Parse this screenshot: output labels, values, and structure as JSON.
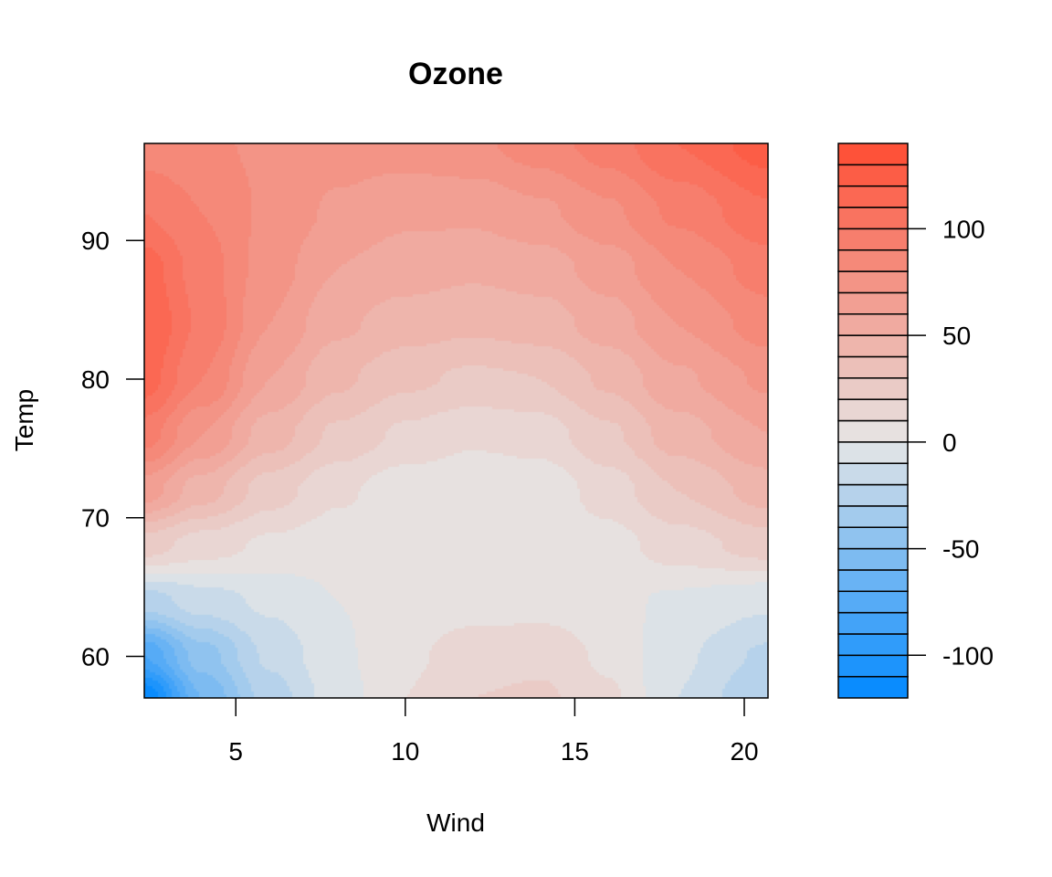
{
  "chart_data": {
    "type": "heatmap",
    "title": "Ozone",
    "xlabel": "Wind",
    "ylabel": "Temp",
    "xlim": [
      2.3,
      20.7
    ],
    "ylim": [
      57,
      97
    ],
    "x_ticks": [
      5,
      10,
      15,
      20
    ],
    "x_tick_labels": [
      "5",
      "10",
      "15",
      "20"
    ],
    "y_ticks": [
      60,
      70,
      80,
      90
    ],
    "y_tick_labels": [
      "60",
      "70",
      "80",
      "90"
    ],
    "colorbar": {
      "levels": [
        -120,
        -110,
        -100,
        -90,
        -80,
        -70,
        -60,
        -50,
        -40,
        -30,
        -20,
        -10,
        0,
        10,
        20,
        30,
        40,
        50,
        60,
        70,
        80,
        90,
        100,
        110,
        120,
        130,
        140
      ],
      "ticks": [
        -100,
        -50,
        0,
        50,
        100
      ],
      "tick_labels": [
        "-100",
        "-50",
        "0",
        "50",
        "100"
      ],
      "low_color": "#0088ff",
      "mid_color": "#e6e6e6",
      "high_color": "#ff4c33"
    },
    "grid": false,
    "legend": "right",
    "z_samples": {
      "wind": [
        2.3,
        4,
        6,
        8,
        10,
        12,
        14,
        16,
        18,
        20.7
      ],
      "temp": [
        57,
        60,
        64,
        68,
        72,
        76,
        80,
        84,
        88,
        92,
        97
      ],
      "values": [
        [
          -120,
          -60,
          -25,
          -5,
          10,
          20,
          22,
          12,
          -10,
          -30
        ],
        [
          -80,
          -45,
          -18,
          -2,
          8,
          15,
          17,
          8,
          -8,
          -22
        ],
        [
          -25,
          -15,
          -8,
          0,
          4,
          6,
          6,
          3,
          -2,
          -8
        ],
        [
          25,
          15,
          8,
          4,
          2,
          2,
          2,
          6,
          15,
          25
        ],
        [
          65,
          45,
          25,
          12,
          4,
          2,
          3,
          15,
          30,
          45
        ],
        [
          95,
          70,
          45,
          28,
          18,
          12,
          15,
          28,
          45,
          60
        ],
        [
          115,
          90,
          60,
          42,
          32,
          28,
          30,
          42,
          58,
          72
        ],
        [
          120,
          98,
          70,
          52,
          45,
          42,
          45,
          55,
          70,
          85
        ],
        [
          115,
          95,
          75,
          60,
          55,
          52,
          55,
          65,
          80,
          95
        ],
        [
          100,
          90,
          78,
          68,
          62,
          62,
          68,
          78,
          92,
          108
        ],
        [
          85,
          82,
          78,
          75,
          75,
          78,
          85,
          95,
          110,
          125
        ]
      ]
    }
  }
}
